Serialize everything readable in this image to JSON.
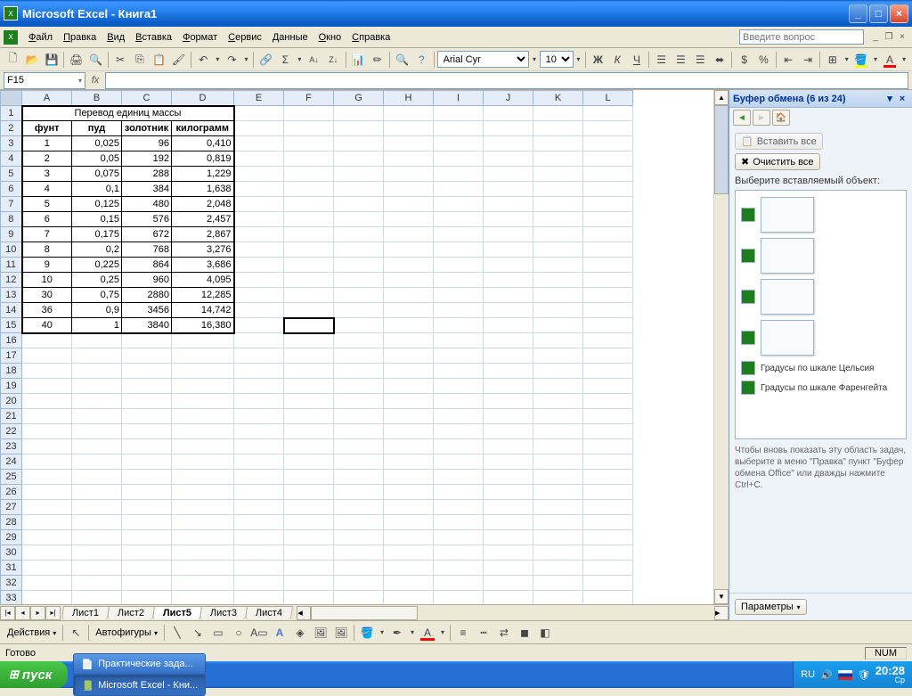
{
  "window": {
    "title": "Microsoft Excel - Книга1",
    "ask_placeholder": "Введите вопрос"
  },
  "menu": [
    "Файл",
    "Правка",
    "Вид",
    "Вставка",
    "Формат",
    "Сервис",
    "Данные",
    "Окно",
    "Справка"
  ],
  "font": {
    "name": "Arial Cyr",
    "size": "10"
  },
  "namebox": "F15",
  "selected_cell": {
    "col": "F",
    "row": 15
  },
  "columns": [
    "A",
    "B",
    "C",
    "D",
    "E",
    "F",
    "G",
    "H",
    "I",
    "J",
    "K",
    "L"
  ],
  "row_count": 33,
  "data_table": {
    "title": "Перевод единиц массы",
    "headers": [
      "фунт",
      "пуд",
      "золотник",
      "килограмм"
    ],
    "rows": [
      [
        "1",
        "0,025",
        "96",
        "0,410"
      ],
      [
        "2",
        "0,05",
        "192",
        "0,819"
      ],
      [
        "3",
        "0,075",
        "288",
        "1,229"
      ],
      [
        "4",
        "0,1",
        "384",
        "1,638"
      ],
      [
        "5",
        "0,125",
        "480",
        "2,048"
      ],
      [
        "6",
        "0,15",
        "576",
        "2,457"
      ],
      [
        "7",
        "0,175",
        "672",
        "2,867"
      ],
      [
        "8",
        "0,2",
        "768",
        "3,276"
      ],
      [
        "9",
        "0,225",
        "864",
        "3,686"
      ],
      [
        "10",
        "0,25",
        "960",
        "4,095"
      ],
      [
        "30",
        "0,75",
        "2880",
        "12,285"
      ],
      [
        "36",
        "0,9",
        "3456",
        "14,742"
      ],
      [
        "40",
        "1",
        "3840",
        "16,380"
      ]
    ]
  },
  "sheet_tabs": [
    "Лист1",
    "Лист2",
    "Лист5",
    "Лист3",
    "Лист4"
  ],
  "active_sheet": 2,
  "taskpane": {
    "title": "Буфер обмена (6 из 24)",
    "paste_all": "Вставить все",
    "clear_all": "Очистить все",
    "choose": "Выберите вставляемый объект:",
    "text_items": [
      "Градусы по шкале Цельсия",
      "Градусы по шкале Фаренгейта"
    ],
    "hint": "Чтобы вновь показать эту область задач, выберите в меню \"Правка\" пункт \"Буфер обмена Office\" или дважды нажмите Ctrl+C.",
    "options": "Параметры"
  },
  "drawing": {
    "actions": "Действия",
    "autoshapes": "Автофигуры"
  },
  "status": {
    "ready": "Готово",
    "lang": "RU",
    "indicator": "NUM"
  },
  "taskbar": {
    "start": "пуск",
    "items": [
      "Практические зада...",
      "Microsoft Excel - Кни..."
    ],
    "active": 1,
    "tray_lang": "RU",
    "time": "20:28",
    "day": "Ср"
  },
  "colors": {
    "titlebar": "#2883f0",
    "header_bg": "#e4ecf7",
    "grid_line": "#d0d7e5",
    "pane_bg": "#eef3fa"
  }
}
